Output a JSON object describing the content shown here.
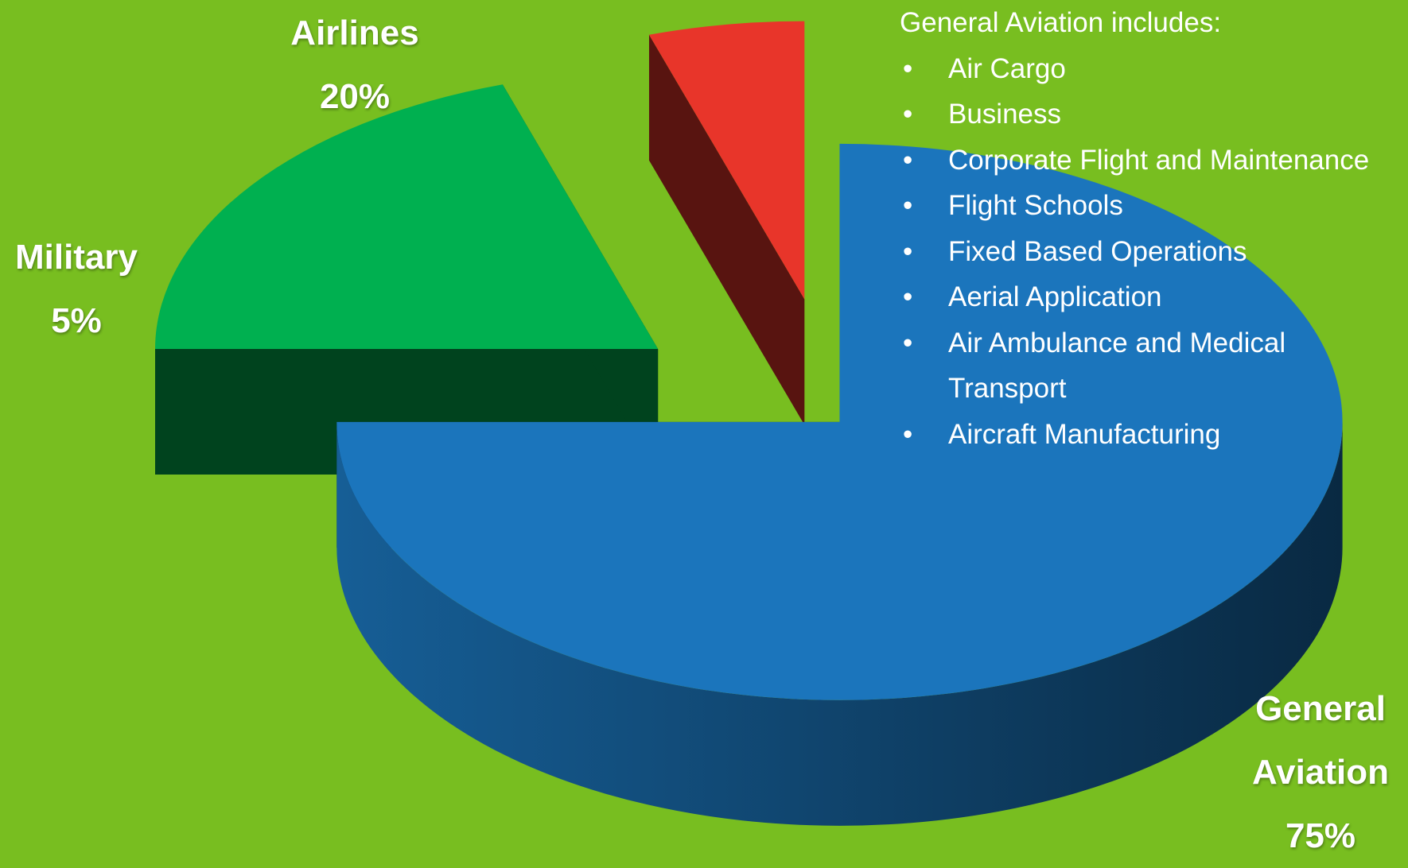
{
  "chart_data": {
    "type": "pie",
    "categories": [
      "Airlines",
      "Military",
      "General Aviation"
    ],
    "values": [
      20,
      5,
      75
    ],
    "value_labels": [
      "20%",
      "5%",
      "75%"
    ],
    "colors": [
      "#00b050",
      "#e8352a",
      "#1b75bc"
    ],
    "annotation": {
      "title": "General Aviation includes:",
      "items": [
        "Air Cargo",
        "Business",
        "Corporate Flight and Maintenance",
        "Flight Schools",
        "Fixed Based Operations",
        "Aerial Application",
        "Air Ambulance and Medical Transport",
        "Aircraft Manufacturing"
      ]
    }
  }
}
